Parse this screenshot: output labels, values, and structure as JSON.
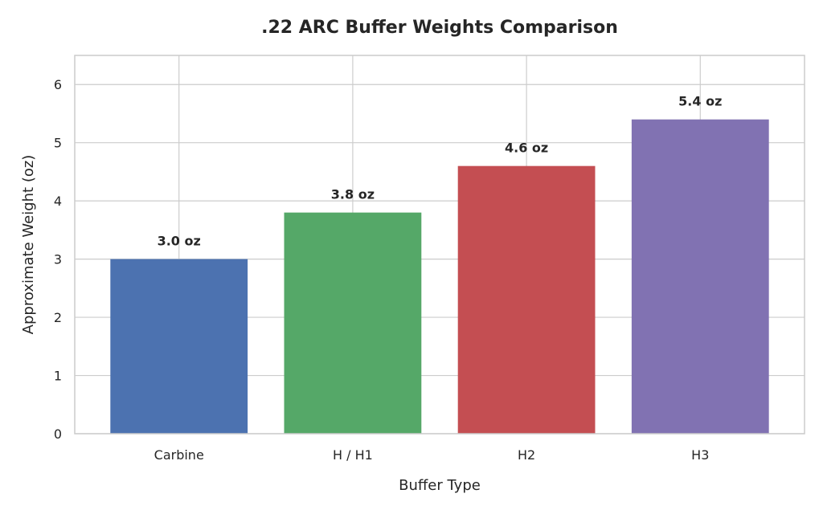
{
  "chart_data": {
    "type": "bar",
    "title": ".22 ARC Buffer Weights Comparison",
    "xlabel": "Buffer Type",
    "ylabel": "Approximate Weight (oz)",
    "categories": [
      "Carbine",
      "H / H1",
      "H2",
      "H3"
    ],
    "values": [
      3.0,
      3.8,
      4.6,
      5.4
    ],
    "data_labels": [
      "3.0 oz",
      "3.8 oz",
      "4.6 oz",
      "5.4 oz"
    ],
    "colors": [
      "#4c72b0",
      "#55a868",
      "#c44e52",
      "#8172b2"
    ],
    "ylim": [
      0,
      6.5
    ],
    "yticks": [
      0,
      1,
      2,
      3,
      4,
      5,
      6
    ],
    "grid": true,
    "legend": "none"
  }
}
